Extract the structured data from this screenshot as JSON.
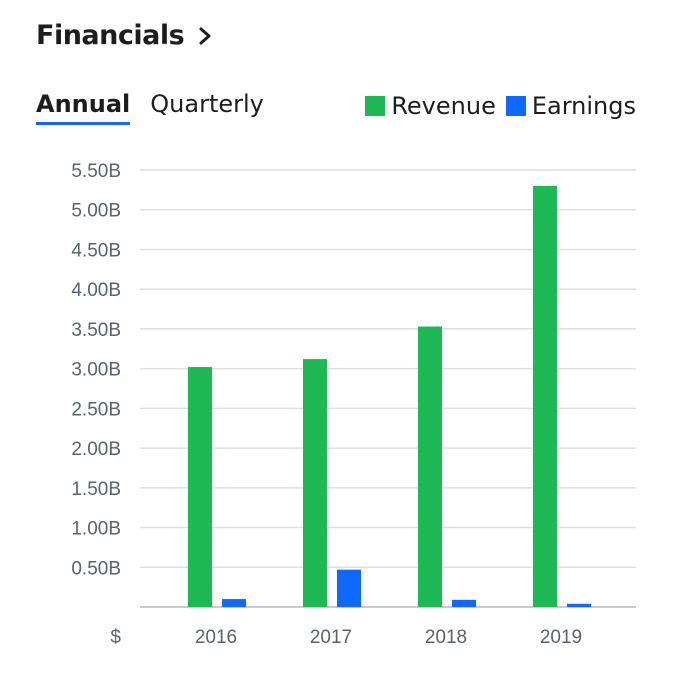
{
  "header": {
    "title": "Financials"
  },
  "tabs": [
    {
      "label": "Annual",
      "active": true
    },
    {
      "label": "Quarterly",
      "active": false
    }
  ],
  "colors": {
    "revenue": "#1db954",
    "earnings": "#0f69ff",
    "accent": "#0f69ff"
  },
  "chart_data": {
    "type": "bar",
    "categories": [
      "2016",
      "2017",
      "2018",
      "2019"
    ],
    "series": [
      {
        "name": "Revenue",
        "color": "#1db954",
        "values": [
          3.02,
          3.12,
          3.53,
          5.3
        ]
      },
      {
        "name": "Earnings",
        "color": "#0f69ff",
        "values": [
          0.1,
          0.47,
          0.09,
          0.04
        ]
      }
    ],
    "y_ticks": [
      "5.50B",
      "5.00B",
      "4.50B",
      "4.00B",
      "3.50B",
      "3.00B",
      "2.50B",
      "2.00B",
      "1.50B",
      "1.00B",
      "0.50B"
    ],
    "y_unit": "$",
    "ylim": [
      0,
      5.5
    ],
    "grid": true,
    "legend_position": "top-right"
  }
}
